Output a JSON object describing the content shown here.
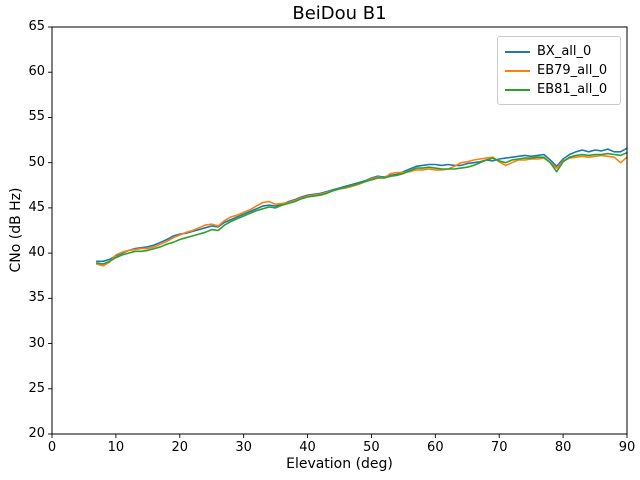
{
  "chart_data": {
    "type": "line",
    "title": "BeiDou B1",
    "xlabel": "Elevation (deg)",
    "ylabel": "CNo (dB Hz)",
    "xlim": [
      0,
      90
    ],
    "ylim": [
      20,
      65
    ],
    "xticks": [
      0,
      10,
      20,
      30,
      40,
      50,
      60,
      70,
      80,
      90
    ],
    "yticks": [
      20,
      25,
      30,
      35,
      40,
      45,
      50,
      55,
      60,
      65
    ],
    "grid": false,
    "legend_position": "upper right",
    "x": [
      7,
      8,
      9,
      10,
      11,
      12,
      13,
      14,
      15,
      16,
      17,
      18,
      19,
      20,
      21,
      22,
      23,
      24,
      25,
      26,
      27,
      28,
      29,
      30,
      31,
      32,
      33,
      34,
      35,
      36,
      37,
      38,
      39,
      40,
      41,
      42,
      43,
      44,
      45,
      46,
      47,
      48,
      49,
      50,
      51,
      52,
      53,
      54,
      55,
      56,
      57,
      58,
      59,
      60,
      61,
      62,
      63,
      64,
      65,
      66,
      67,
      68,
      69,
      70,
      71,
      72,
      73,
      74,
      75,
      76,
      77,
      78,
      79,
      80,
      81,
      82,
      83,
      84,
      85,
      86,
      87,
      88,
      89,
      90
    ],
    "series": [
      {
        "name": "BX_all_0",
        "color": "#1f77b4",
        "values": [
          39.1,
          39.1,
          39.3,
          39.7,
          40.0,
          40.3,
          40.5,
          40.6,
          40.7,
          40.9,
          41.2,
          41.5,
          41.9,
          42.1,
          42.2,
          42.4,
          42.6,
          42.8,
          43.0,
          42.9,
          43.4,
          43.7,
          44.0,
          44.3,
          44.6,
          44.9,
          45.2,
          45.3,
          45.2,
          45.4,
          45.7,
          45.9,
          46.2,
          46.4,
          46.5,
          46.6,
          46.8,
          47.0,
          47.2,
          47.4,
          47.6,
          47.8,
          48.0,
          48.3,
          48.5,
          48.4,
          48.6,
          48.7,
          49.0,
          49.3,
          49.6,
          49.7,
          49.8,
          49.8,
          49.7,
          49.8,
          49.7,
          49.7,
          49.9,
          50.0,
          50.1,
          50.3,
          50.2,
          50.4,
          50.5,
          50.6,
          50.7,
          50.8,
          50.7,
          50.8,
          50.9,
          50.3,
          49.6,
          50.4,
          50.9,
          51.2,
          51.4,
          51.2,
          51.4,
          51.3,
          51.5,
          51.2,
          51.2,
          51.6
        ]
      },
      {
        "name": "EB79_all_0",
        "color": "#ff7f0e",
        "values": [
          38.8,
          38.6,
          39.0,
          39.8,
          40.1,
          40.3,
          40.4,
          40.5,
          40.5,
          40.7,
          41.0,
          41.3,
          41.7,
          42.0,
          42.3,
          42.5,
          42.8,
          43.1,
          43.2,
          43.0,
          43.6,
          44.0,
          44.2,
          44.5,
          44.8,
          45.2,
          45.6,
          45.7,
          45.4,
          45.5,
          45.6,
          45.8,
          46.1,
          46.3,
          46.4,
          46.5,
          46.7,
          46.9,
          47.1,
          47.2,
          47.4,
          47.6,
          47.9,
          48.2,
          48.4,
          48.3,
          48.8,
          48.9,
          48.9,
          49.0,
          49.2,
          49.2,
          49.3,
          49.2,
          49.2,
          49.3,
          49.6,
          50.0,
          50.1,
          50.3,
          50.4,
          50.5,
          50.6,
          50.1,
          49.7,
          50.0,
          50.3,
          50.3,
          50.4,
          50.4,
          50.5,
          50.0,
          49.4,
          50.2,
          50.5,
          50.6,
          50.7,
          50.6,
          50.7,
          50.8,
          50.7,
          50.6,
          50.0,
          50.6
        ]
      },
      {
        "name": "EB81_all_0",
        "color": "#2ca02c",
        "values": [
          38.9,
          38.8,
          39.1,
          39.5,
          39.8,
          40.0,
          40.2,
          40.2,
          40.3,
          40.5,
          40.7,
          41.0,
          41.2,
          41.5,
          41.7,
          41.9,
          42.1,
          42.3,
          42.6,
          42.5,
          43.1,
          43.5,
          43.8,
          44.1,
          44.4,
          44.7,
          44.9,
          45.1,
          45.0,
          45.3,
          45.5,
          45.7,
          46.0,
          46.2,
          46.3,
          46.4,
          46.6,
          46.9,
          47.1,
          47.3,
          47.5,
          47.7,
          47.9,
          48.1,
          48.3,
          48.3,
          48.5,
          48.6,
          48.8,
          49.1,
          49.4,
          49.4,
          49.5,
          49.4,
          49.3,
          49.3,
          49.3,
          49.4,
          49.5,
          49.7,
          50.0,
          50.3,
          50.5,
          50.2,
          50.0,
          50.3,
          50.4,
          50.5,
          50.5,
          50.6,
          50.6,
          50.0,
          49.0,
          50.1,
          50.6,
          50.8,
          50.9,
          50.8,
          50.9,
          50.9,
          51.0,
          50.9,
          50.8,
          51.1
        ]
      }
    ]
  }
}
